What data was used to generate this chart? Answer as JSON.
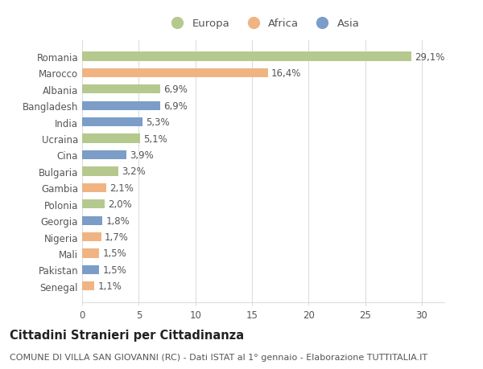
{
  "categories": [
    "Romania",
    "Marocco",
    "Albania",
    "Bangladesh",
    "India",
    "Ucraina",
    "Cina",
    "Bulgaria",
    "Gambia",
    "Polonia",
    "Georgia",
    "Nigeria",
    "Mali",
    "Pakistan",
    "Senegal"
  ],
  "values": [
    29.1,
    16.4,
    6.9,
    6.9,
    5.3,
    5.1,
    3.9,
    3.2,
    2.1,
    2.0,
    1.8,
    1.7,
    1.5,
    1.5,
    1.1
  ],
  "labels": [
    "29,1%",
    "16,4%",
    "6,9%",
    "6,9%",
    "5,3%",
    "5,1%",
    "3,9%",
    "3,2%",
    "2,1%",
    "2,0%",
    "1,8%",
    "1,7%",
    "1,5%",
    "1,5%",
    "1,1%"
  ],
  "continents": [
    "Europa",
    "Africa",
    "Europa",
    "Asia",
    "Asia",
    "Europa",
    "Asia",
    "Europa",
    "Africa",
    "Europa",
    "Asia",
    "Africa",
    "Africa",
    "Asia",
    "Africa"
  ],
  "colors": {
    "Europa": "#b5c98e",
    "Africa": "#f0b482",
    "Asia": "#7b9dc7"
  },
  "legend_labels": [
    "Europa",
    "Africa",
    "Asia"
  ],
  "legend_colors": [
    "#b5c98e",
    "#f0b482",
    "#7b9dc7"
  ],
  "xlim": [
    0,
    32
  ],
  "xticks": [
    0,
    5,
    10,
    15,
    20,
    25,
    30
  ],
  "title": "Cittadini Stranieri per Cittadinanza",
  "subtitle": "COMUNE DI VILLA SAN GIOVANNI (RC) - Dati ISTAT al 1° gennaio - Elaborazione TUTTITALIA.IT",
  "bg_color": "#ffffff",
  "grid_color": "#dddddd",
  "bar_height": 0.55,
  "label_fontsize": 8.5,
  "tick_fontsize": 8.5,
  "title_fontsize": 10.5,
  "subtitle_fontsize": 8.0
}
